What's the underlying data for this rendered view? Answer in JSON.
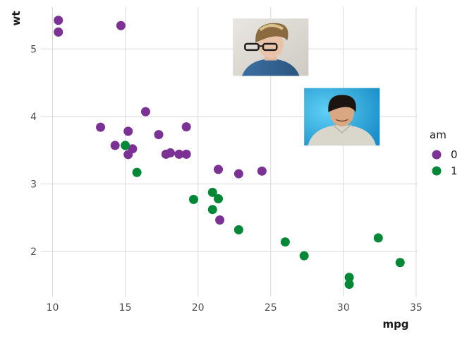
{
  "chart_data": {
    "type": "scatter",
    "xlabel": "mpg",
    "ylabel": "wt",
    "xlim": [
      9.2,
      35.1
    ],
    "ylim": [
      1.33,
      5.62
    ],
    "x_ticks": [
      10,
      15,
      20,
      25,
      30,
      35
    ],
    "y_ticks": [
      2,
      3,
      4,
      5
    ],
    "grid": true,
    "legend": {
      "title": "am",
      "position": "right",
      "entries": [
        {
          "label": "0",
          "color": "#7b3294"
        },
        {
          "label": "1",
          "color": "#008837"
        }
      ]
    },
    "series": [
      {
        "name": "0",
        "color": "#7b3294",
        "points": [
          [
            21.4,
            3.215
          ],
          [
            18.7,
            3.44
          ],
          [
            18.1,
            3.46
          ],
          [
            14.3,
            3.57
          ],
          [
            24.4,
            3.19
          ],
          [
            22.8,
            3.15
          ],
          [
            19.2,
            3.44
          ],
          [
            17.8,
            3.44
          ],
          [
            16.4,
            4.07
          ],
          [
            17.3,
            3.73
          ],
          [
            15.2,
            3.78
          ],
          [
            10.4,
            5.25
          ],
          [
            10.4,
            5.424
          ],
          [
            14.7,
            5.345
          ],
          [
            21.5,
            2.465
          ],
          [
            15.5,
            3.52
          ],
          [
            15.2,
            3.435
          ],
          [
            13.3,
            3.84
          ],
          [
            19.2,
            3.845
          ]
        ]
      },
      {
        "name": "1",
        "color": "#008837",
        "points": [
          [
            21.0,
            2.62
          ],
          [
            21.0,
            2.875
          ],
          [
            22.8,
            2.32
          ],
          [
            32.4,
            2.2
          ],
          [
            30.4,
            1.615
          ],
          [
            33.9,
            1.835
          ],
          [
            27.3,
            1.935
          ],
          [
            26.0,
            2.14
          ],
          [
            30.4,
            1.513
          ],
          [
            15.8,
            3.17
          ],
          [
            19.7,
            2.77
          ],
          [
            15.0,
            3.57
          ],
          [
            21.4,
            2.78
          ]
        ]
      }
    ]
  },
  "annotations": [
    {
      "name": "photo-annotation-1",
      "x_range": [
        22.4,
        27.6
      ],
      "y_range": [
        4.6,
        5.45
      ]
    },
    {
      "name": "photo-annotation-2",
      "x_range": [
        27.3,
        32.5
      ],
      "y_range": [
        3.57,
        4.42
      ]
    }
  ]
}
